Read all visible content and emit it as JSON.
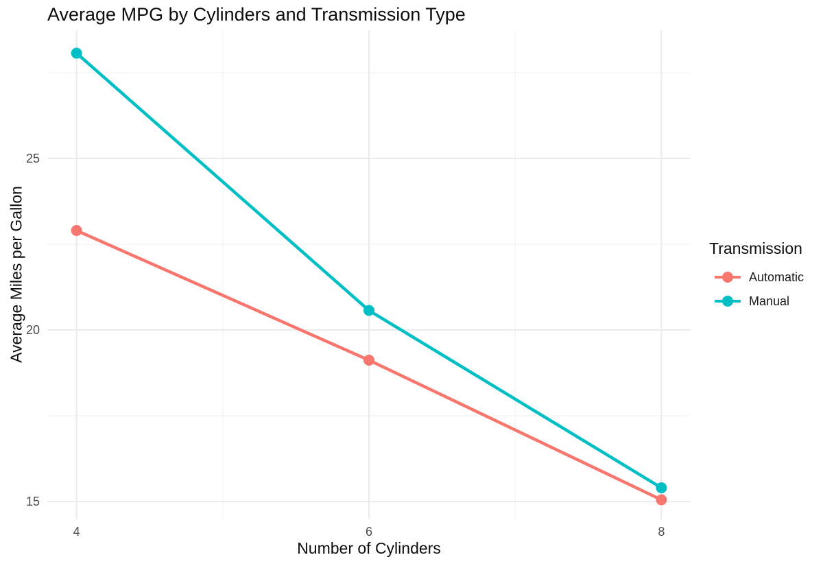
{
  "title": "Average MPG by Cylinders and Transmission Type",
  "legend": {
    "title": "Transmission",
    "items": [
      {
        "label": "Automatic",
        "color": "#F8766D"
      },
      {
        "label": "Manual",
        "color": "#00BFC4"
      }
    ]
  },
  "chart_data": {
    "type": "line",
    "title": "Average MPG by Cylinders and Transmission Type",
    "xlabel": "Number of Cylinders",
    "ylabel": "Average Miles per Gallon",
    "x": [
      4,
      6,
      8
    ],
    "series": [
      {
        "name": "Automatic",
        "color": "#F8766D",
        "values": [
          22.9,
          19.12,
          15.05
        ]
      },
      {
        "name": "Manual",
        "color": "#00BFC4",
        "values": [
          28.07,
          20.57,
          15.4
        ]
      }
    ],
    "legend_title": "Transmission",
    "legend_position": "right",
    "x_ticks": [
      4,
      6,
      8
    ],
    "y_ticks": [
      15,
      20,
      25
    ],
    "x_minor_ticks": [
      5,
      7
    ],
    "y_minor_ticks": [
      17.5,
      22.5,
      27.5
    ],
    "xlim": [
      3.8,
      8.2
    ],
    "ylim": [
      14.48,
      28.74
    ],
    "grid": "major-and-minor",
    "background": "#ffffff",
    "colors": {
      "grid_major": "#EBEBEB",
      "grid_minor": "#F2F2F2",
      "tick_label": "#4D4D4D",
      "text": "#0d0d0d"
    }
  }
}
